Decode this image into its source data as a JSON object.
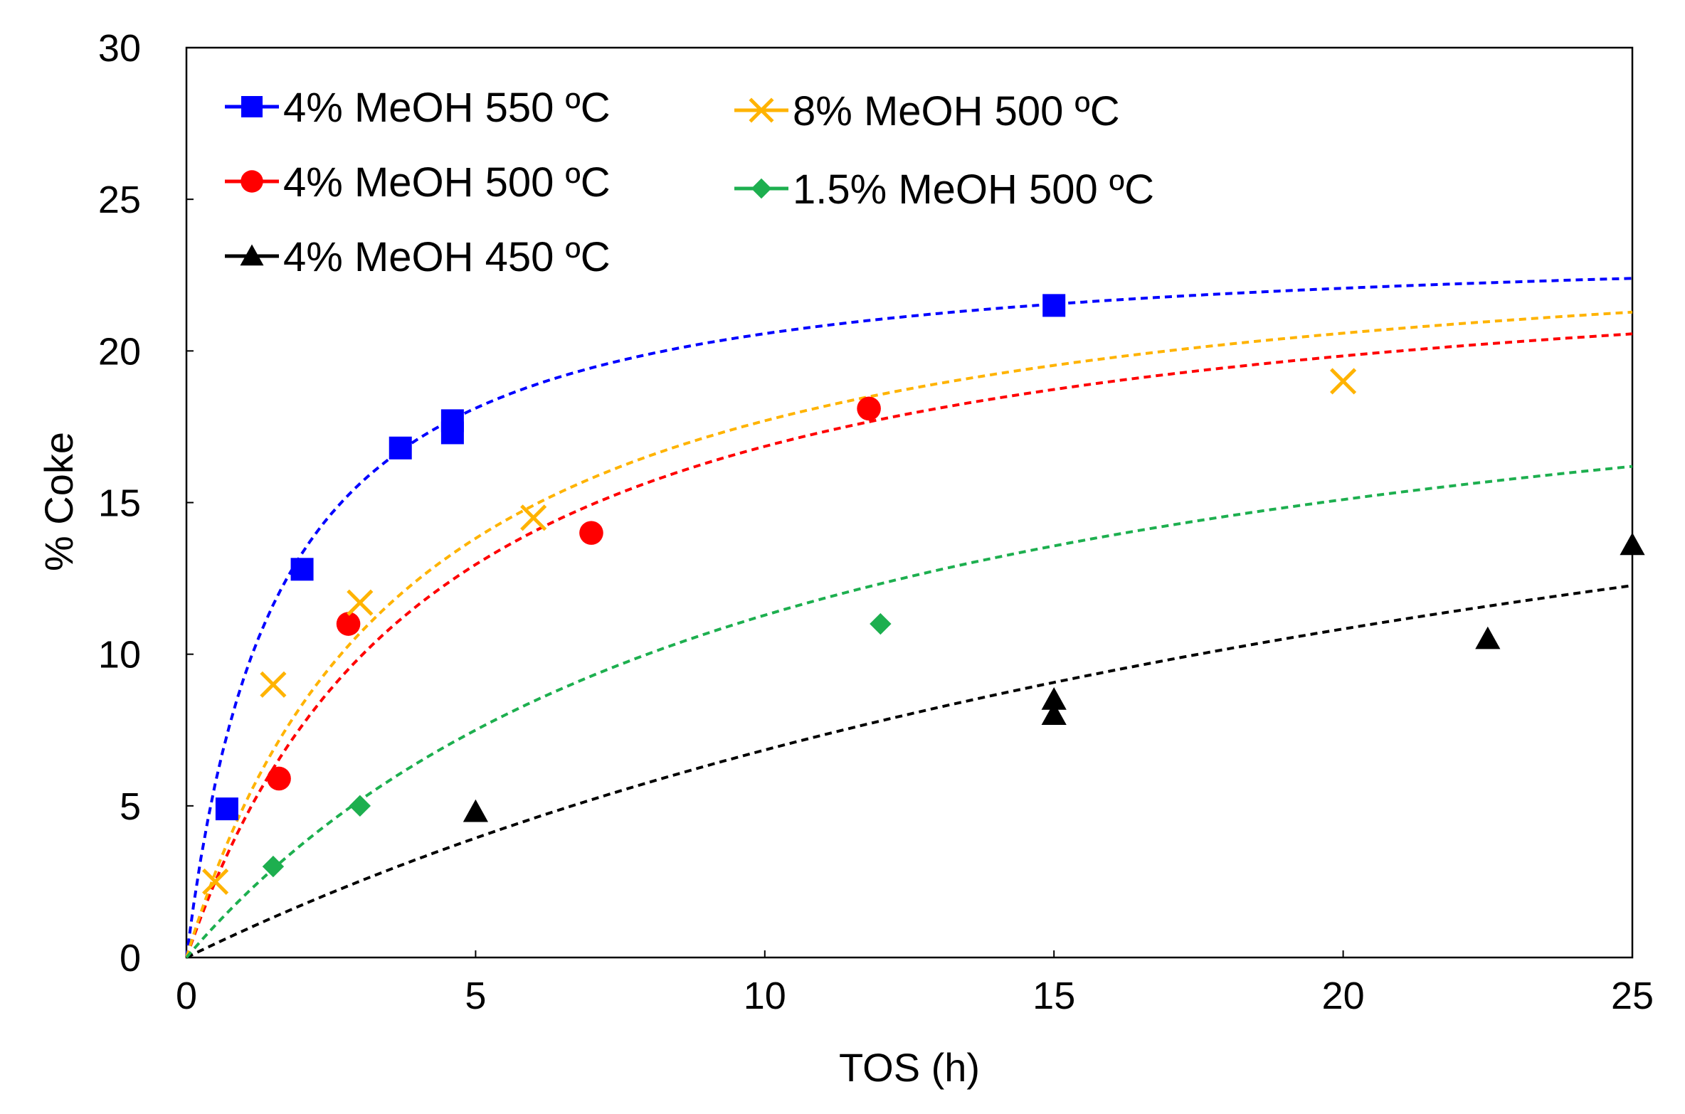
{
  "chart_data": {
    "type": "scatter",
    "title": "",
    "xlabel": "TOS (h)",
    "ylabel": "% Coke",
    "xlim": [
      0,
      25
    ],
    "ylim": [
      0,
      30
    ],
    "xticks": [
      0,
      5,
      10,
      15,
      20,
      25
    ],
    "yticks": [
      0,
      5,
      10,
      15,
      20,
      25,
      30
    ],
    "grid": false,
    "legend_position": "top-left",
    "series": [
      {
        "name": "4% MeOH 550 ºC",
        "color": "#0000FF",
        "marker": "square",
        "x": [
          0.7,
          2.0,
          3.7,
          4.6,
          4.6,
          15.0
        ],
        "y": [
          4.9,
          12.8,
          16.8,
          17.3,
          17.7,
          21.5
        ],
        "fit": {
          "model": "saturation",
          "a": 23.8,
          "b": 1.57
        }
      },
      {
        "name": "4% MeOH 500 ºC",
        "color": "#FF0000",
        "marker": "circle",
        "x": [
          1.6,
          2.8,
          7.0,
          11.8
        ],
        "y": [
          5.9,
          11.0,
          14.0,
          18.1
        ],
        "fit": {
          "model": "saturation",
          "a": 24.1,
          "b": 4.3
        }
      },
      {
        "name": "4% MeOH 450 ºC",
        "color": "#000000",
        "marker": "triangle",
        "x": [
          5.0,
          15.0,
          15.0,
          22.5,
          25.0
        ],
        "y": [
          4.8,
          8.0,
          8.5,
          10.5,
          13.6
        ],
        "fit": {
          "model": "saturation",
          "a": 26.0,
          "b": 28.0
        }
      },
      {
        "name": "8% MeOH 500 ºC",
        "color": "#FFB300",
        "marker": "x",
        "x": [
          0.5,
          1.5,
          3.0,
          6.0,
          20.0
        ],
        "y": [
          2.5,
          9.0,
          11.7,
          14.5,
          19.0
        ],
        "fit": {
          "model": "saturation",
          "a": 24.6,
          "b": 3.9
        }
      },
      {
        "name": "1.5% MeOH 500 ºC",
        "color": "#1DAF4F",
        "marker": "diamond",
        "x": [
          1.5,
          3.0,
          12.0
        ],
        "y": [
          3.0,
          5.0,
          11.0
        ],
        "fit": {
          "model": "saturation",
          "a": 22.8,
          "b": 10.2
        }
      }
    ]
  }
}
